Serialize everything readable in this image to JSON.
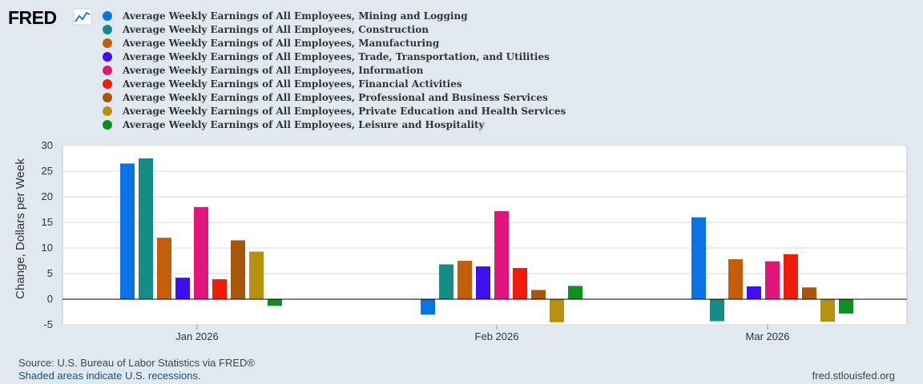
{
  "header": {
    "logo_text": "FRED",
    "logo_icon": "line-chart-icon"
  },
  "footer": {
    "source": "Source: U.S. Bureau of Labor Statistics via FRED®",
    "recession_note": "Shaded areas indicate U.S. recessions.",
    "site": "fred.stlouisfed.org"
  },
  "chart_data": {
    "type": "bar",
    "title": "",
    "xlabel": "",
    "ylabel": "Change, Dollars per Week",
    "ylim": [
      -5,
      30
    ],
    "yticks": [
      -5,
      0,
      5,
      10,
      15,
      20,
      25,
      30
    ],
    "grid": true,
    "legend_position": "top-left",
    "categories": [
      "Jan 2026",
      "Feb 2026",
      "Mar 2026"
    ],
    "series": [
      {
        "name": "Average Weekly Earnings of All Employees, Mining and Logging",
        "color": "#0b72e6",
        "values": [
          26.5,
          -3.0,
          16.0
        ]
      },
      {
        "name": "Average Weekly Earnings of All Employees, Construction",
        "color": "#178b85",
        "values": [
          27.5,
          6.8,
          -4.3
        ]
      },
      {
        "name": "Average Weekly Earnings of All Employees, Manufacturing",
        "color": "#c25d0b",
        "values": [
          12.0,
          7.5,
          7.8
        ]
      },
      {
        "name": "Average Weekly Earnings of All Employees, Trade, Transportation, and Utilities",
        "color": "#3d0ff2",
        "values": [
          4.2,
          6.4,
          2.5
        ]
      },
      {
        "name": "Average Weekly Earnings of All Employees, Information",
        "color": "#e0167b",
        "values": [
          18.0,
          17.2,
          7.4
        ]
      },
      {
        "name": "Average Weekly Earnings of All Employees, Financial Activities",
        "color": "#ef1c0c",
        "values": [
          3.9,
          6.1,
          8.8
        ]
      },
      {
        "name": "Average Weekly Earnings of All Employees, Professional and Business Services",
        "color": "#a8560c",
        "values": [
          11.5,
          1.8,
          2.3
        ]
      },
      {
        "name": "Average Weekly Earnings of All Employees, Private Education and Health Services",
        "color": "#b8900f",
        "values": [
          9.3,
          -4.5,
          -4.4
        ]
      },
      {
        "name": "Average Weekly Earnings of All Employees, Leisure and Hospitality",
        "color": "#0f8f21",
        "values": [
          -1.3,
          2.6,
          -2.8
        ]
      }
    ]
  }
}
